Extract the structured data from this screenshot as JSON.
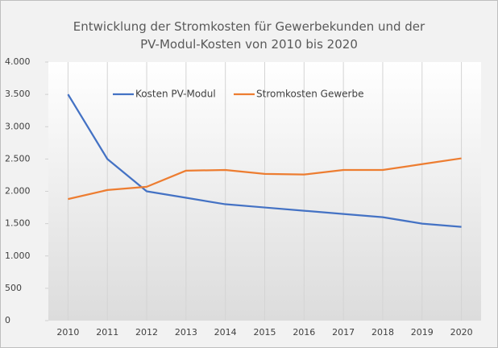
{
  "chart_data": {
    "type": "line",
    "title": "Entwicklung der Stromkosten für Gewerbekunden und der PV-Modul-Kosten von 2010 bis 2020",
    "categories": [
      "2010",
      "2011",
      "2012",
      "2013",
      "2014",
      "2015",
      "2016",
      "2017",
      "2018",
      "2019",
      "2020"
    ],
    "series": [
      {
        "name": "Kosten PV-Modul",
        "color": "#4472c4",
        "values": [
          3500,
          2500,
          2000,
          1900,
          1800,
          1750,
          1700,
          1650,
          1600,
          1500,
          1450
        ]
      },
      {
        "name": "Stromkosten Gewerbe",
        "color": "#ed7d31",
        "values": [
          1880,
          2020,
          2070,
          2320,
          2330,
          2270,
          2260,
          2330,
          2330,
          2420,
          2510
        ]
      }
    ],
    "ylim": [
      0,
      4000
    ],
    "yticks": [
      0,
      500,
      {
        "value": 1000,
        "label": "1.000"
      },
      {
        "value": 1500,
        "label": "1.500"
      },
      {
        "value": 2000,
        "label": "2.000"
      },
      {
        "value": 2500,
        "label": "2.500"
      },
      {
        "value": 3000,
        "label": "3.000"
      },
      {
        "value": 3500,
        "label": "3.500"
      },
      {
        "value": 4000,
        "label": "4.000"
      }
    ],
    "legend": "top"
  }
}
